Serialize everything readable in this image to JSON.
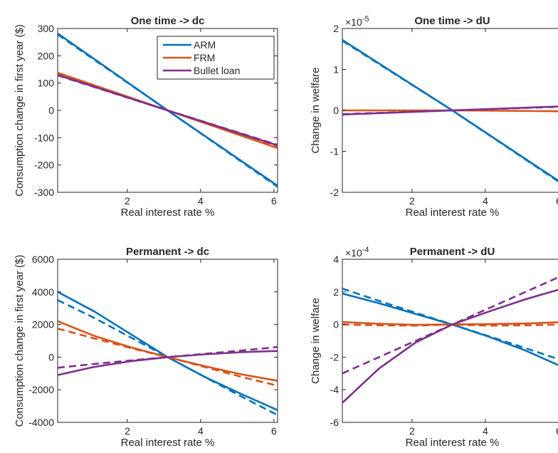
{
  "colors": {
    "ARM": "#0072bd",
    "FRM": "#d95319",
    "Bullet loan": "#7e2f8e",
    "axis": "#262626"
  },
  "legend": {
    "placement": "top-right",
    "entries": [
      "ARM",
      "FRM",
      "Bullet loan"
    ]
  },
  "chart_data": [
    {
      "type": "line",
      "title": "One time -> dc",
      "xlabel": "Real interest rate %",
      "ylabel": "Consumption change in first year ($)",
      "xlim": [
        0.1,
        6.1
      ],
      "ylim": [
        -300,
        300
      ],
      "xticks": [
        2,
        4,
        6
      ],
      "yticks": [
        -300,
        -200,
        -100,
        0,
        100,
        200,
        300
      ],
      "exponent": "",
      "show_legend": true,
      "series": [
        {
          "name": "ARM",
          "style": "solid",
          "x": [
            0.1,
            3.1,
            6.1
          ],
          "y": [
            282,
            0,
            -276
          ]
        },
        {
          "name": "ARM",
          "style": "dashed",
          "x": [
            0.1,
            3.1,
            6.1
          ],
          "y": [
            278,
            0,
            -280
          ]
        },
        {
          "name": "FRM",
          "style": "solid",
          "x": [
            0.1,
            3.1,
            6.1
          ],
          "y": [
            138,
            0,
            -138
          ]
        },
        {
          "name": "FRM",
          "style": "dashed",
          "x": [
            0.1,
            3.1,
            6.1
          ],
          "y": [
            135,
            0,
            -135
          ]
        },
        {
          "name": "Bullet loan",
          "style": "solid",
          "x": [
            0.1,
            3.1,
            6.1
          ],
          "y": [
            130,
            0,
            -128
          ]
        },
        {
          "name": "Bullet loan",
          "style": "dashed",
          "x": [
            0.1,
            3.1,
            6.1
          ],
          "y": [
            128,
            0,
            -126
          ]
        }
      ]
    },
    {
      "type": "line",
      "title": "One time -> dU",
      "xlabel": "Real interest rate %",
      "ylabel": "Change in welfare",
      "xlim": [
        0.1,
        6.1
      ],
      "ylim": [
        -2,
        2
      ],
      "xticks": [
        2,
        4,
        6
      ],
      "yticks": [
        -2,
        -1,
        0,
        1,
        2
      ],
      "exponent": "-5",
      "show_legend": false,
      "series": [
        {
          "name": "ARM",
          "style": "solid",
          "x": [
            0.1,
            3.1,
            6.1
          ],
          "y": [
            1.72,
            0,
            -1.78
          ]
        },
        {
          "name": "ARM",
          "style": "dashed",
          "x": [
            0.1,
            3.1,
            6.1
          ],
          "y": [
            1.7,
            0,
            -1.8
          ]
        },
        {
          "name": "FRM",
          "style": "solid",
          "x": [
            0.1,
            3.1,
            6.1
          ],
          "y": [
            0.0,
            0,
            -0.02
          ]
        },
        {
          "name": "Bullet loan",
          "style": "solid",
          "x": [
            0.1,
            3.1,
            6.1
          ],
          "y": [
            -0.1,
            0,
            0.1
          ]
        },
        {
          "name": "Bullet loan",
          "style": "dashed",
          "x": [
            0.1,
            3.1,
            6.1
          ],
          "y": [
            -0.09,
            0,
            0.09
          ]
        }
      ]
    },
    {
      "type": "line",
      "title": "Permanent -> dc",
      "xlabel": "Real interest rate %",
      "ylabel": "Consumption change in first year ($)",
      "xlim": [
        0.1,
        6.1
      ],
      "ylim": [
        -4000,
        6000
      ],
      "xticks": [
        2,
        4,
        6
      ],
      "yticks": [
        -4000,
        -2000,
        0,
        2000,
        4000,
        6000
      ],
      "exponent": "",
      "show_legend": false,
      "series": [
        {
          "name": "ARM",
          "style": "solid",
          "x": [
            0.1,
            1.1,
            2.1,
            3.1,
            4.1,
            5.1,
            6.1
          ],
          "y": [
            4000,
            2800,
            1400,
            0,
            -1200,
            -2250,
            -3250
          ]
        },
        {
          "name": "ARM",
          "style": "dashed",
          "x": [
            0.1,
            1.1,
            2.1,
            3.1,
            4.1,
            5.1,
            6.1
          ],
          "y": [
            3500,
            2400,
            1200,
            0,
            -1200,
            -2400,
            -3550
          ]
        },
        {
          "name": "FRM",
          "style": "solid",
          "x": [
            0.1,
            1.1,
            2.1,
            3.1,
            4.1,
            5.1,
            6.1
          ],
          "y": [
            2200,
            1300,
            600,
            0,
            -550,
            -1050,
            -1450
          ]
        },
        {
          "name": "FRM",
          "style": "dashed",
          "x": [
            0.1,
            1.1,
            2.1,
            3.1,
            4.1,
            5.1,
            6.1
          ],
          "y": [
            1750,
            1150,
            550,
            0,
            -600,
            -1200,
            -1750
          ]
        },
        {
          "name": "Bullet loan",
          "style": "solid",
          "x": [
            0.1,
            1.1,
            2.1,
            3.1,
            4.1,
            5.1,
            6.1
          ],
          "y": [
            -1100,
            -600,
            -250,
            0,
            170,
            300,
            380
          ]
        },
        {
          "name": "Bullet loan",
          "style": "dashed",
          "x": [
            0.1,
            1.1,
            2.1,
            3.1,
            4.1,
            5.1,
            6.1
          ],
          "y": [
            -650,
            -420,
            -200,
            0,
            200,
            400,
            620
          ]
        }
      ]
    },
    {
      "type": "line",
      "title": "Permanent -> dU",
      "xlabel": "Real interest rate %",
      "ylabel": "Change in welfare",
      "xlim": [
        0.1,
        6.1
      ],
      "ylim": [
        -6,
        4
      ],
      "xticks": [
        2,
        4,
        6
      ],
      "yticks": [
        -6,
        -4,
        -2,
        0,
        2,
        4
      ],
      "exponent": "-4",
      "show_legend": false,
      "series": [
        {
          "name": "ARM",
          "style": "solid",
          "x": [
            0.1,
            1.1,
            2.1,
            3.1,
            4.1,
            5.1,
            6.1
          ],
          "y": [
            1.9,
            1.3,
            0.65,
            0,
            -0.75,
            -1.6,
            -2.6
          ]
        },
        {
          "name": "ARM",
          "style": "dashed",
          "x": [
            0.1,
            1.1,
            2.1,
            3.1,
            4.1,
            5.1,
            6.1
          ],
          "y": [
            2.2,
            1.45,
            0.72,
            0,
            -0.72,
            -1.45,
            -2.2
          ]
        },
        {
          "name": "FRM",
          "style": "solid",
          "x": [
            0.1,
            1.1,
            2.1,
            3.1,
            4.1,
            5.1,
            6.1
          ],
          "y": [
            0.15,
            0.05,
            -0.02,
            0,
            0.02,
            0.06,
            0.15
          ]
        },
        {
          "name": "FRM",
          "style": "dashed",
          "x": [
            0.1,
            1.1,
            2.1,
            3.1,
            4.1,
            5.1,
            6.1
          ],
          "y": [
            0.0,
            -0.05,
            -0.07,
            0,
            -0.07,
            -0.05,
            0.0
          ]
        },
        {
          "name": "Bullet loan",
          "style": "solid",
          "x": [
            0.1,
            1.1,
            2.1,
            3.1,
            4.1,
            5.1,
            6.1
          ],
          "y": [
            -4.8,
            -2.7,
            -1.1,
            0,
            0.8,
            1.55,
            2.2
          ]
        },
        {
          "name": "Bullet loan",
          "style": "dashed",
          "x": [
            0.1,
            1.1,
            2.1,
            3.1,
            4.1,
            5.1,
            6.1
          ],
          "y": [
            -3.0,
            -2.0,
            -1.0,
            0,
            1.0,
            2.0,
            3.0
          ]
        }
      ]
    }
  ]
}
